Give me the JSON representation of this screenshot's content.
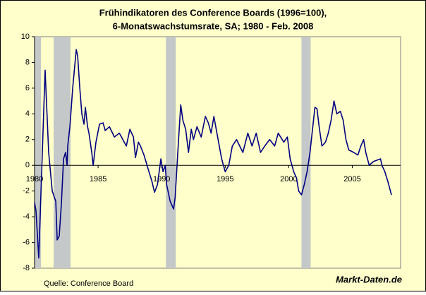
{
  "chart_data": {
    "type": "line",
    "title": "Frühindikatoren des Conference Boards (1996=100),",
    "subtitle": "6-Monatswachstumsrate, SA; 1980 - Feb. 2008",
    "source": "Quelle: Conference Board",
    "brand": "Markt-Daten.de",
    "xlim": [
      1980,
      2008.8
    ],
    "ylim": [
      -8,
      10
    ],
    "xticks": [
      1980,
      1985,
      1990,
      1995,
      2000,
      2005
    ],
    "yticks": [
      -8,
      -6,
      -4,
      -2,
      0,
      2,
      4,
      6,
      8,
      10
    ],
    "grid": false,
    "shade_color": "#c4c8c8",
    "shaded_ranges": [
      [
        1980.0,
        1980.5
      ],
      [
        1981.5,
        1982.83
      ],
      [
        1990.33,
        1991.11
      ],
      [
        2001.0,
        2001.72
      ]
    ],
    "series": [
      {
        "color": "#000080",
        "x": [
          1980.0,
          1980.11,
          1980.33,
          1980.83,
          1981.11,
          1981.39,
          1981.67,
          1981.78,
          1981.94,
          1982.11,
          1982.28,
          1982.44,
          1982.56,
          1982.61,
          1982.78,
          1983.0,
          1983.28,
          1983.39,
          1983.56,
          1983.72,
          1983.89,
          1984.0,
          1984.17,
          1984.28,
          1984.5,
          1984.61,
          1984.83,
          1985.11,
          1985.39,
          1985.56,
          1985.89,
          1986.28,
          1986.67,
          1987.22,
          1987.5,
          1987.78,
          1987.94,
          1988.17,
          1988.33,
          1988.61,
          1989.0,
          1989.22,
          1989.44,
          1989.67,
          1989.94,
          1990.11,
          1990.28,
          1990.39,
          1990.67,
          1990.94,
          1991.06,
          1991.33,
          1991.5,
          1991.67,
          1991.89,
          1992.11,
          1992.33,
          1992.5,
          1992.78,
          1993.11,
          1993.44,
          1993.67,
          1993.89,
          1994.11,
          1994.44,
          1994.72,
          1995.0,
          1995.28,
          1995.56,
          1995.89,
          1996.39,
          1996.78,
          1997.11,
          1997.44,
          1997.78,
          1998.11,
          1998.5,
          1998.89,
          1999.17,
          1999.61,
          1999.89,
          2000.11,
          2000.39,
          2000.61,
          2000.78,
          2001.0,
          2001.22,
          2001.44,
          2001.67,
          2001.89,
          2002.06,
          2002.22,
          2002.39,
          2002.61,
          2002.89,
          2003.11,
          2003.33,
          2003.56,
          2003.78,
          2004.06,
          2004.28,
          2004.5,
          2004.72,
          2005.11,
          2005.44,
          2005.67,
          2005.89,
          2006.06,
          2006.33,
          2006.67,
          2007.22,
          2007.33,
          2007.56,
          2007.78,
          2008.08
        ],
        "values": [
          -2.9,
          -3.5,
          -7.2,
          7.4,
          1,
          -2,
          -2.8,
          -5.8,
          -5.5,
          -3,
          0.5,
          1,
          0,
          1.5,
          3,
          6,
          9,
          8.5,
          6,
          4,
          3.2,
          4.5,
          3,
          2.5,
          1,
          0,
          1.8,
          3.2,
          3.3,
          2.7,
          3,
          2.2,
          2.5,
          1.5,
          2.8,
          2.2,
          0.6,
          1.8,
          1.5,
          0.8,
          -0.5,
          -1.2,
          -2.1,
          -1.5,
          0.5,
          -0.5,
          0,
          -1.5,
          -2.8,
          -3.4,
          -2.5,
          2,
          4.7,
          3.5,
          2.8,
          1,
          2.8,
          2,
          3,
          2.2,
          3.8,
          3.3,
          2.5,
          3.8,
          2,
          0.5,
          -0.5,
          0,
          1.5,
          2,
          1,
          2.5,
          1.5,
          2.5,
          1,
          1.5,
          2,
          1.5,
          2.5,
          1.8,
          2.2,
          0.5,
          -0.5,
          -1,
          -2,
          -2.3,
          -1.5,
          -0.5,
          1,
          3,
          4.5,
          4.4,
          3,
          1.5,
          1.8,
          2.5,
          3.5,
          5,
          4,
          4.2,
          3.5,
          2,
          1.2,
          1,
          0.8,
          1.5,
          2,
          1,
          0,
          0.3,
          0.5,
          0,
          -0.5,
          -1.2,
          -2.3
        ]
      }
    ]
  }
}
